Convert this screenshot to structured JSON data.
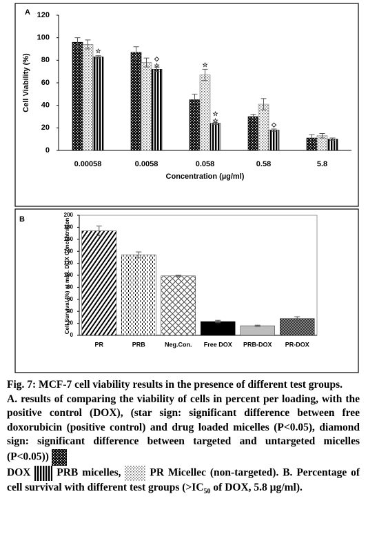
{
  "chart_data": [
    {
      "type": "bar",
      "panel_label": "A",
      "ylabel": "Cell Viability (%)",
      "xlabel": "Concentration (µg/ml)",
      "categories": [
        "0.00058",
        "0.0058",
        "0.058",
        "0.58",
        "5.8"
      ],
      "series": [
        {
          "color": "#000000",
          "values": [
            96,
            87,
            45,
            30,
            11
          ],
          "errors": [
            4,
            5,
            5,
            2,
            3
          ],
          "markers": [
            null,
            null,
            null,
            null,
            null
          ]
        },
        {
          "color": "#777777",
          "values": [
            94,
            78,
            67,
            41,
            13
          ],
          "errors": [
            4,
            4,
            5,
            5,
            2
          ],
          "markers": [
            null,
            null,
            "☆",
            null,
            null
          ]
        },
        {
          "color": "#000000",
          "values": [
            83,
            72,
            24,
            18,
            10
          ],
          "errors": [
            1,
            2,
            1,
            1,
            1
          ],
          "markers": [
            "☆",
            "◇☆",
            "☆☆",
            "◇",
            null
          ]
        }
      ],
      "ylim": [
        0,
        120
      ],
      "yticks": [
        0,
        20,
        40,
        60,
        80,
        100,
        120
      ]
    },
    {
      "type": "bar",
      "panel_label": "B",
      "ylabel": "Cell Survival (%) at max. DOX Concentration",
      "categories": [
        "PR",
        "PRB",
        "Neg.Con.",
        "Free DOX",
        "PRB-DOX",
        "PR-DOX"
      ],
      "values": [
        174,
        134,
        99,
        23,
        16,
        28
      ],
      "errors": [
        8,
        5,
        1,
        2,
        1,
        3
      ],
      "color": "#000000",
      "ylim": [
        0,
        200
      ],
      "yticks": [
        0,
        20,
        40,
        60,
        80,
        100,
        120,
        140,
        160,
        180,
        200
      ]
    }
  ],
  "caption": {
    "title": "Fig. 7: MCF-7 cell viability results in the presence of different test groups.",
    "parts": [
      "A. results of comparing the viability of cells in percent per loading, with the positive control (DOX), (star sign: significant difference between free doxorubicin (positive control) and drug loaded micelles (P<0.05), diamond sign: significant difference between targeted and untargeted micelles (P<0.05))",
      "DOX",
      "PRB micelles,",
      "PR Micellec (non-targeted). B. Percentage of cell survival with different test groups (>IC",
      "50",
      " of DOX, 5.8 µg/ml)."
    ]
  }
}
